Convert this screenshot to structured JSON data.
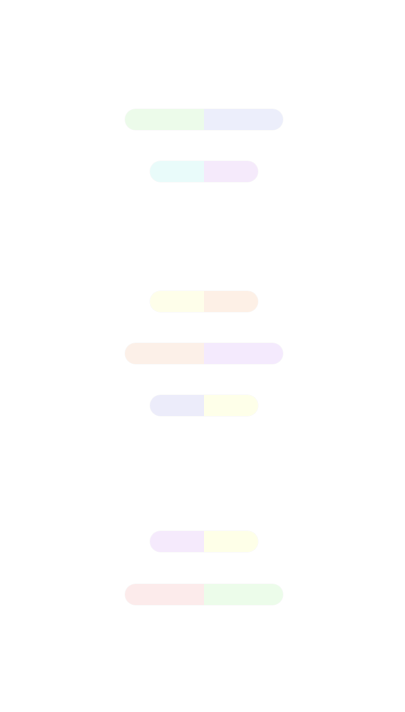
{
  "toggles": [
    {
      "id": "toggle-1",
      "left_color": "#ecfbea",
      "right_color": "#eceefb"
    },
    {
      "id": "toggle-2",
      "left_color": "#e9fbfa",
      "right_color": "#f5eafb"
    },
    {
      "id": "toggle-3",
      "left_color": "#fefeea",
      "right_color": "#fdf0e6"
    },
    {
      "id": "toggle-4",
      "left_color": "#fcf0e8",
      "right_color": "#f4eafd"
    },
    {
      "id": "toggle-5",
      "left_color": "#ececfa",
      "right_color": "#feffe9"
    },
    {
      "id": "toggle-6",
      "left_color": "#f5eafc",
      "right_color": "#feffe8"
    },
    {
      "id": "toggle-7",
      "left_color": "#fcebeb",
      "right_color": "#ecfcea"
    }
  ]
}
